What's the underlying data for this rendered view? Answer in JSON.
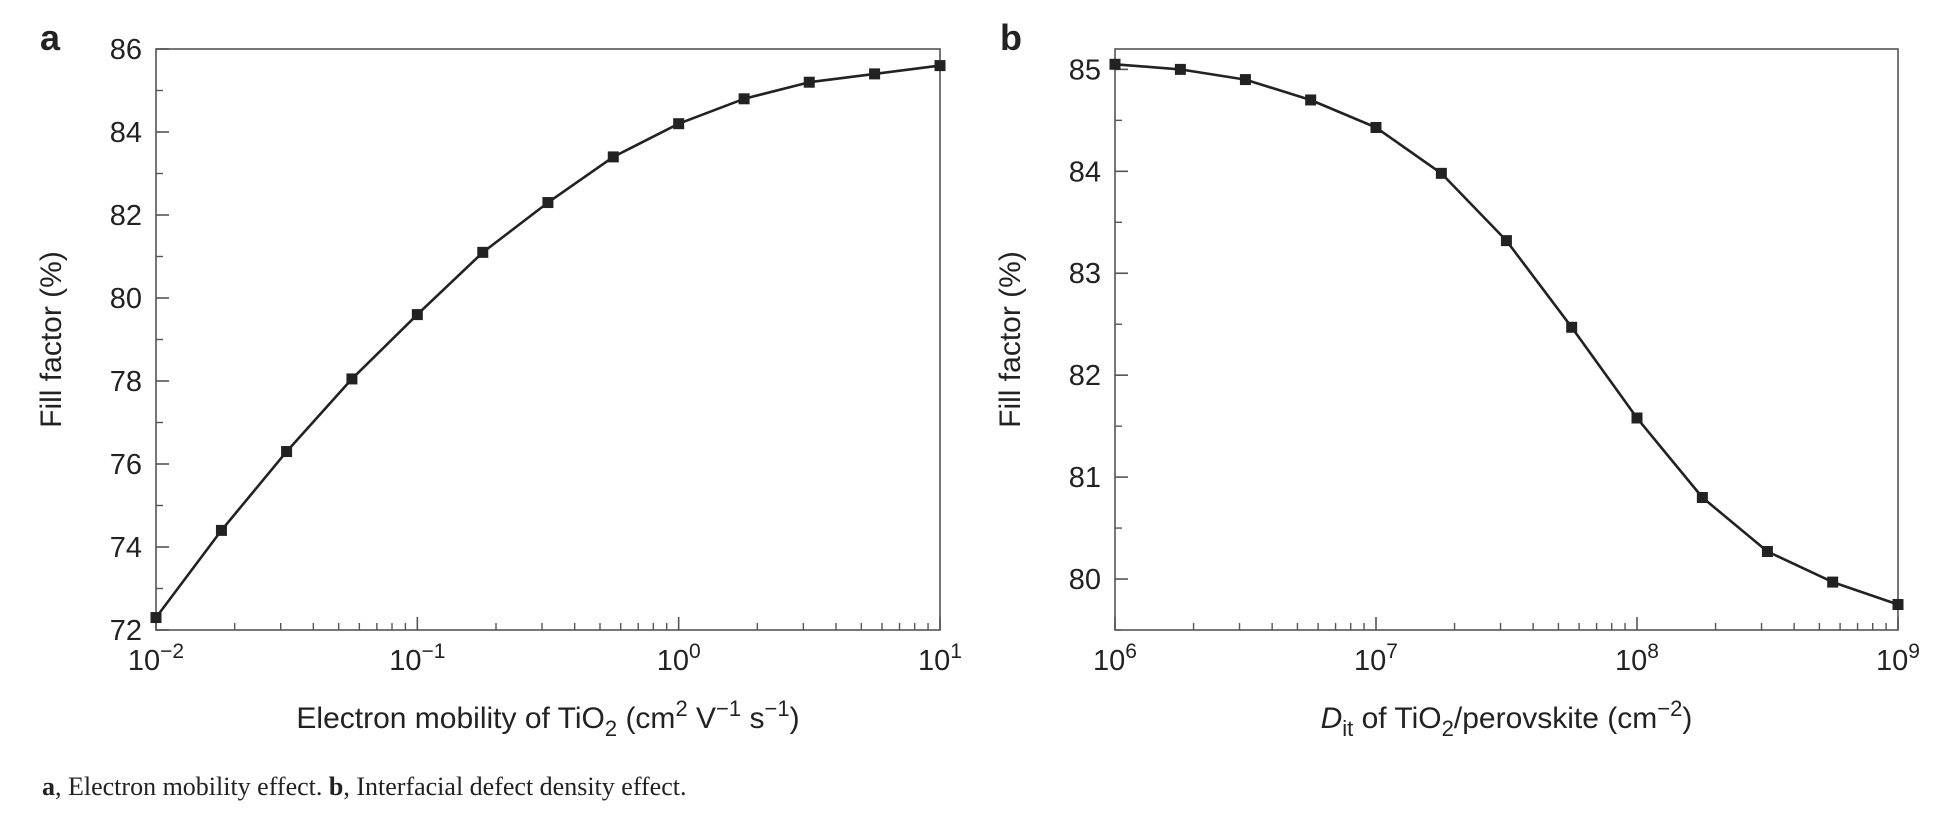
{
  "caption": {
    "a_letter": "a",
    "a_text": ", Electron mobility effect. ",
    "b_letter": "b",
    "b_text": ", Interfacial defect density effect."
  },
  "chart_data": [
    {
      "panel": "a",
      "type": "line",
      "xscale": "log",
      "xlim": [
        0.01,
        10
      ],
      "ylim": [
        72,
        86
      ],
      "xticks": [
        0.01,
        0.1,
        1,
        10
      ],
      "xtick_labels": [
        {
          "base": "10",
          "exp": "−2"
        },
        {
          "base": "10",
          "exp": "−1"
        },
        {
          "base": "10",
          "exp": "0"
        },
        {
          "base": "10",
          "exp": "1"
        }
      ],
      "yticks": [
        72,
        74,
        76,
        78,
        80,
        82,
        84,
        86
      ],
      "ylabel": "Fill factor (%)",
      "xlabel_parts": [
        "Electron mobility of TiO",
        "2",
        " (cm",
        "2",
        " V",
        "−1",
        " s",
        "−1",
        ")"
      ],
      "marker": "square",
      "color": "#222222",
      "x": [
        0.01,
        0.0178,
        0.0316,
        0.0562,
        0.1,
        0.178,
        0.316,
        0.562,
        1,
        1.78,
        3.16,
        5.62,
        10
      ],
      "y": [
        72.3,
        74.4,
        76.3,
        78.05,
        79.6,
        81.1,
        82.3,
        83.4,
        84.2,
        84.8,
        85.2,
        85.4,
        85.6
      ]
    },
    {
      "panel": "b",
      "type": "line",
      "xscale": "log",
      "xlim": [
        1000000,
        1000000000
      ],
      "ylim": [
        79.5,
        85.2
      ],
      "xticks": [
        1000000,
        10000000,
        100000000,
        1000000000
      ],
      "xtick_labels": [
        {
          "base": "10",
          "exp": "6"
        },
        {
          "base": "10",
          "exp": "7"
        },
        {
          "base": "10",
          "exp": "8"
        },
        {
          "base": "10",
          "exp": "9"
        }
      ],
      "yticks": [
        80,
        81,
        82,
        83,
        84,
        85
      ],
      "ylabel": "Fill factor (%)",
      "xlabel_parts": [
        "D",
        "it",
        " of TiO",
        "2",
        "/perovskite (cm",
        "−2",
        ")"
      ],
      "marker": "square",
      "color": "#222222",
      "x": [
        1000000,
        1780000,
        3160000,
        5620000,
        10000000,
        17800000,
        31600000,
        56200000,
        100000000,
        178000000,
        316000000,
        562000000,
        1000000000
      ],
      "y": [
        85.05,
        85.0,
        84.9,
        84.7,
        84.43,
        83.98,
        83.32,
        82.47,
        81.58,
        80.8,
        80.27,
        79.97,
        79.75
      ]
    }
  ]
}
